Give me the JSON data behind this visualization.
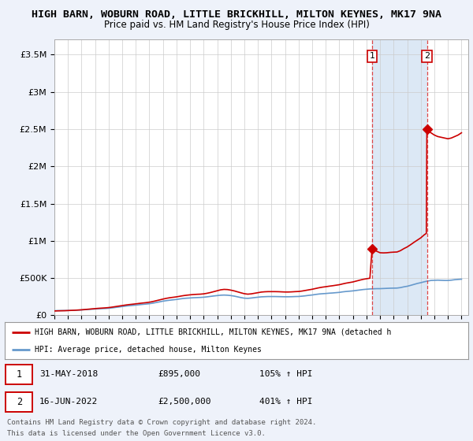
{
  "title": "HIGH BARN, WOBURN ROAD, LITTLE BRICKHILL, MILTON KEYNES, MK17 9NA",
  "subtitle": "Price paid vs. HM Land Registry's House Price Index (HPI)",
  "title_fontsize": 9.5,
  "subtitle_fontsize": 8.5,
  "background_color": "#eef2fa",
  "plot_bg_color": "#ffffff",
  "shade_color": "#dce8f5",
  "ylim": [
    0,
    3700000
  ],
  "yticks": [
    0,
    500000,
    1000000,
    1500000,
    2000000,
    2500000,
    3000000,
    3500000
  ],
  "ytick_labels": [
    "£0",
    "£500K",
    "£1M",
    "£1.5M",
    "£2M",
    "£2.5M",
    "£3M",
    "£3.5M"
  ],
  "xlim_start": 1995.0,
  "xlim_end": 2025.5,
  "sale1_year": 2018.41,
  "sale1_price": 895000,
  "sale1_label": "1",
  "sale1_date": "31-MAY-2018",
  "sale1_display": "£895,000",
  "sale1_pct": "105% ↑ HPI",
  "sale2_year": 2022.45,
  "sale2_price": 2500000,
  "sale2_label": "2",
  "sale2_date": "16-JUN-2022",
  "sale2_display": "£2,500,000",
  "sale2_pct": "401% ↑ HPI",
  "red_color": "#cc0000",
  "blue_color": "#6699cc",
  "dashed_color": "#dd3333",
  "legend_label_red": "HIGH BARN, WOBURN ROAD, LITTLE BRICKHILL, MILTON KEYNES, MK17 9NA (detached h",
  "legend_label_blue": "HPI: Average price, detached house, Milton Keynes",
  "footer1": "Contains HM Land Registry data © Crown copyright and database right 2024.",
  "footer2": "This data is licensed under the Open Government Licence v3.0.",
  "hpi_data": [
    [
      1995.0,
      62000
    ],
    [
      1995.25,
      63000
    ],
    [
      1995.5,
      63500
    ],
    [
      1995.75,
      64000
    ],
    [
      1996.0,
      65000
    ],
    [
      1996.25,
      66500
    ],
    [
      1996.5,
      68000
    ],
    [
      1996.75,
      70000
    ],
    [
      1997.0,
      72000
    ],
    [
      1997.25,
      76000
    ],
    [
      1997.5,
      79000
    ],
    [
      1997.75,
      82000
    ],
    [
      1998.0,
      85000
    ],
    [
      1998.25,
      88000
    ],
    [
      1998.5,
      90000
    ],
    [
      1998.75,
      92000
    ],
    [
      1999.0,
      95000
    ],
    [
      1999.25,
      100000
    ],
    [
      1999.5,
      106000
    ],
    [
      1999.75,
      112000
    ],
    [
      2000.0,
      118000
    ],
    [
      2000.25,
      124000
    ],
    [
      2000.5,
      129000
    ],
    [
      2000.75,
      133000
    ],
    [
      2001.0,
      137000
    ],
    [
      2001.25,
      142000
    ],
    [
      2001.5,
      147000
    ],
    [
      2001.75,
      151000
    ],
    [
      2002.0,
      156000
    ],
    [
      2002.25,
      163000
    ],
    [
      2002.5,
      172000
    ],
    [
      2002.75,
      181000
    ],
    [
      2003.0,
      190000
    ],
    [
      2003.25,
      197000
    ],
    [
      2003.5,
      203000
    ],
    [
      2003.75,
      208000
    ],
    [
      2004.0,
      213000
    ],
    [
      2004.25,
      220000
    ],
    [
      2004.5,
      226000
    ],
    [
      2004.75,
      230000
    ],
    [
      2005.0,
      233000
    ],
    [
      2005.25,
      236000
    ],
    [
      2005.5,
      238000
    ],
    [
      2005.75,
      240000
    ],
    [
      2006.0,
      243000
    ],
    [
      2006.25,
      248000
    ],
    [
      2006.5,
      254000
    ],
    [
      2006.75,
      260000
    ],
    [
      2007.0,
      265000
    ],
    [
      2007.25,
      270000
    ],
    [
      2007.5,
      272000
    ],
    [
      2007.75,
      270000
    ],
    [
      2008.0,
      265000
    ],
    [
      2008.25,
      258000
    ],
    [
      2008.5,
      248000
    ],
    [
      2008.75,
      238000
    ],
    [
      2009.0,
      230000
    ],
    [
      2009.25,
      228000
    ],
    [
      2009.5,
      232000
    ],
    [
      2009.75,
      238000
    ],
    [
      2010.0,
      243000
    ],
    [
      2010.25,
      248000
    ],
    [
      2010.5,
      250000
    ],
    [
      2010.75,
      252000
    ],
    [
      2011.0,
      252000
    ],
    [
      2011.25,
      252000
    ],
    [
      2011.5,
      251000
    ],
    [
      2011.75,
      250000
    ],
    [
      2012.0,
      249000
    ],
    [
      2012.25,
      249000
    ],
    [
      2012.5,
      250000
    ],
    [
      2012.75,
      252000
    ],
    [
      2013.0,
      253000
    ],
    [
      2013.25,
      257000
    ],
    [
      2013.5,
      262000
    ],
    [
      2013.75,
      268000
    ],
    [
      2014.0,
      273000
    ],
    [
      2014.25,
      280000
    ],
    [
      2014.5,
      286000
    ],
    [
      2014.75,
      290000
    ],
    [
      2015.0,
      293000
    ],
    [
      2015.25,
      297000
    ],
    [
      2015.5,
      300000
    ],
    [
      2015.75,
      304000
    ],
    [
      2016.0,
      308000
    ],
    [
      2016.25,
      315000
    ],
    [
      2016.5,
      320000
    ],
    [
      2016.75,
      324000
    ],
    [
      2017.0,
      328000
    ],
    [
      2017.25,
      334000
    ],
    [
      2017.5,
      340000
    ],
    [
      2017.75,
      346000
    ],
    [
      2018.0,
      350000
    ],
    [
      2018.25,
      354000
    ],
    [
      2018.5,
      356000
    ],
    [
      2018.75,
      358000
    ],
    [
      2019.0,
      358000
    ],
    [
      2019.25,
      360000
    ],
    [
      2019.5,
      362000
    ],
    [
      2019.75,
      364000
    ],
    [
      2020.0,
      365000
    ],
    [
      2020.25,
      366000
    ],
    [
      2020.5,
      372000
    ],
    [
      2020.75,
      382000
    ],
    [
      2021.0,
      390000
    ],
    [
      2021.25,
      402000
    ],
    [
      2021.5,
      415000
    ],
    [
      2021.75,
      428000
    ],
    [
      2022.0,
      438000
    ],
    [
      2022.25,
      450000
    ],
    [
      2022.5,
      460000
    ],
    [
      2022.75,
      468000
    ],
    [
      2023.0,
      470000
    ],
    [
      2023.25,
      472000
    ],
    [
      2023.5,
      470000
    ],
    [
      2023.75,
      468000
    ],
    [
      2024.0,
      468000
    ],
    [
      2024.25,
      472000
    ],
    [
      2024.5,
      478000
    ],
    [
      2024.75,
      482000
    ],
    [
      2025.0,
      485000
    ]
  ],
  "red_data": [
    [
      1995.0,
      58000
    ],
    [
      1995.25,
      60000
    ],
    [
      1995.5,
      61000
    ],
    [
      1995.75,
      62000
    ],
    [
      1996.0,
      64000
    ],
    [
      1996.25,
      66000
    ],
    [
      1996.5,
      68000
    ],
    [
      1996.75,
      71000
    ],
    [
      1997.0,
      74000
    ],
    [
      1997.25,
      78000
    ],
    [
      1997.5,
      82000
    ],
    [
      1997.75,
      86000
    ],
    [
      1998.0,
      90000
    ],
    [
      1998.25,
      94000
    ],
    [
      1998.5,
      97000
    ],
    [
      1998.75,
      100000
    ],
    [
      1999.0,
      104000
    ],
    [
      1999.25,
      110000
    ],
    [
      1999.5,
      117000
    ],
    [
      1999.75,
      124000
    ],
    [
      2000.0,
      131000
    ],
    [
      2000.25,
      138000
    ],
    [
      2000.5,
      144000
    ],
    [
      2000.75,
      149000
    ],
    [
      2001.0,
      154000
    ],
    [
      2001.25,
      160000
    ],
    [
      2001.5,
      165000
    ],
    [
      2001.75,
      170000
    ],
    [
      2002.0,
      176000
    ],
    [
      2002.25,
      185000
    ],
    [
      2002.5,
      196000
    ],
    [
      2002.75,
      207000
    ],
    [
      2003.0,
      218000
    ],
    [
      2003.25,
      228000
    ],
    [
      2003.5,
      236000
    ],
    [
      2003.75,
      242000
    ],
    [
      2004.0,
      248000
    ],
    [
      2004.25,
      256000
    ],
    [
      2004.5,
      264000
    ],
    [
      2004.75,
      270000
    ],
    [
      2005.0,
      275000
    ],
    [
      2005.25,
      279000
    ],
    [
      2005.5,
      282000
    ],
    [
      2005.75,
      284000
    ],
    [
      2006.0,
      288000
    ],
    [
      2006.25,
      296000
    ],
    [
      2006.5,
      306000
    ],
    [
      2006.75,
      318000
    ],
    [
      2007.0,
      330000
    ],
    [
      2007.25,
      342000
    ],
    [
      2007.5,
      348000
    ],
    [
      2007.75,
      346000
    ],
    [
      2008.0,
      338000
    ],
    [
      2008.25,
      328000
    ],
    [
      2008.5,
      315000
    ],
    [
      2008.75,
      302000
    ],
    [
      2009.0,
      290000
    ],
    [
      2009.25,
      284000
    ],
    [
      2009.5,
      288000
    ],
    [
      2009.75,
      296000
    ],
    [
      2010.0,
      304000
    ],
    [
      2010.25,
      312000
    ],
    [
      2010.5,
      316000
    ],
    [
      2010.75,
      318000
    ],
    [
      2011.0,
      318000
    ],
    [
      2011.25,
      318000
    ],
    [
      2011.5,
      317000
    ],
    [
      2011.75,
      315000
    ],
    [
      2012.0,
      313000
    ],
    [
      2012.25,
      313000
    ],
    [
      2012.5,
      315000
    ],
    [
      2012.75,
      318000
    ],
    [
      2013.0,
      320000
    ],
    [
      2013.25,
      326000
    ],
    [
      2013.5,
      334000
    ],
    [
      2013.75,
      342000
    ],
    [
      2014.0,
      350000
    ],
    [
      2014.25,
      360000
    ],
    [
      2014.5,
      370000
    ],
    [
      2014.75,
      378000
    ],
    [
      2015.0,
      384000
    ],
    [
      2015.25,
      391000
    ],
    [
      2015.5,
      397000
    ],
    [
      2015.75,
      404000
    ],
    [
      2016.0,
      411000
    ],
    [
      2016.25,
      422000
    ],
    [
      2016.5,
      432000
    ],
    [
      2016.75,
      440000
    ],
    [
      2017.0,
      448000
    ],
    [
      2017.25,
      460000
    ],
    [
      2017.5,
      472000
    ],
    [
      2017.75,
      483000
    ],
    [
      2018.0,
      491000
    ],
    [
      2018.25,
      498000
    ],
    [
      2018.41,
      895000
    ],
    [
      2018.5,
      880000
    ],
    [
      2018.75,
      860000
    ],
    [
      2019.0,
      840000
    ],
    [
      2019.25,
      838000
    ],
    [
      2019.5,
      840000
    ],
    [
      2019.75,
      845000
    ],
    [
      2020.0,
      848000
    ],
    [
      2020.25,
      850000
    ],
    [
      2020.5,
      868000
    ],
    [
      2020.75,
      895000
    ],
    [
      2021.0,
      918000
    ],
    [
      2021.25,
      948000
    ],
    [
      2021.5,
      980000
    ],
    [
      2021.75,
      1010000
    ],
    [
      2022.0,
      1040000
    ],
    [
      2022.25,
      1080000
    ],
    [
      2022.41,
      1100000
    ],
    [
      2022.45,
      2500000
    ],
    [
      2022.5,
      2480000
    ],
    [
      2022.75,
      2450000
    ],
    [
      2023.0,
      2420000
    ],
    [
      2023.25,
      2400000
    ],
    [
      2023.5,
      2390000
    ],
    [
      2023.75,
      2380000
    ],
    [
      2024.0,
      2370000
    ],
    [
      2024.25,
      2380000
    ],
    [
      2024.5,
      2400000
    ],
    [
      2024.75,
      2420000
    ],
    [
      2025.0,
      2450000
    ]
  ]
}
